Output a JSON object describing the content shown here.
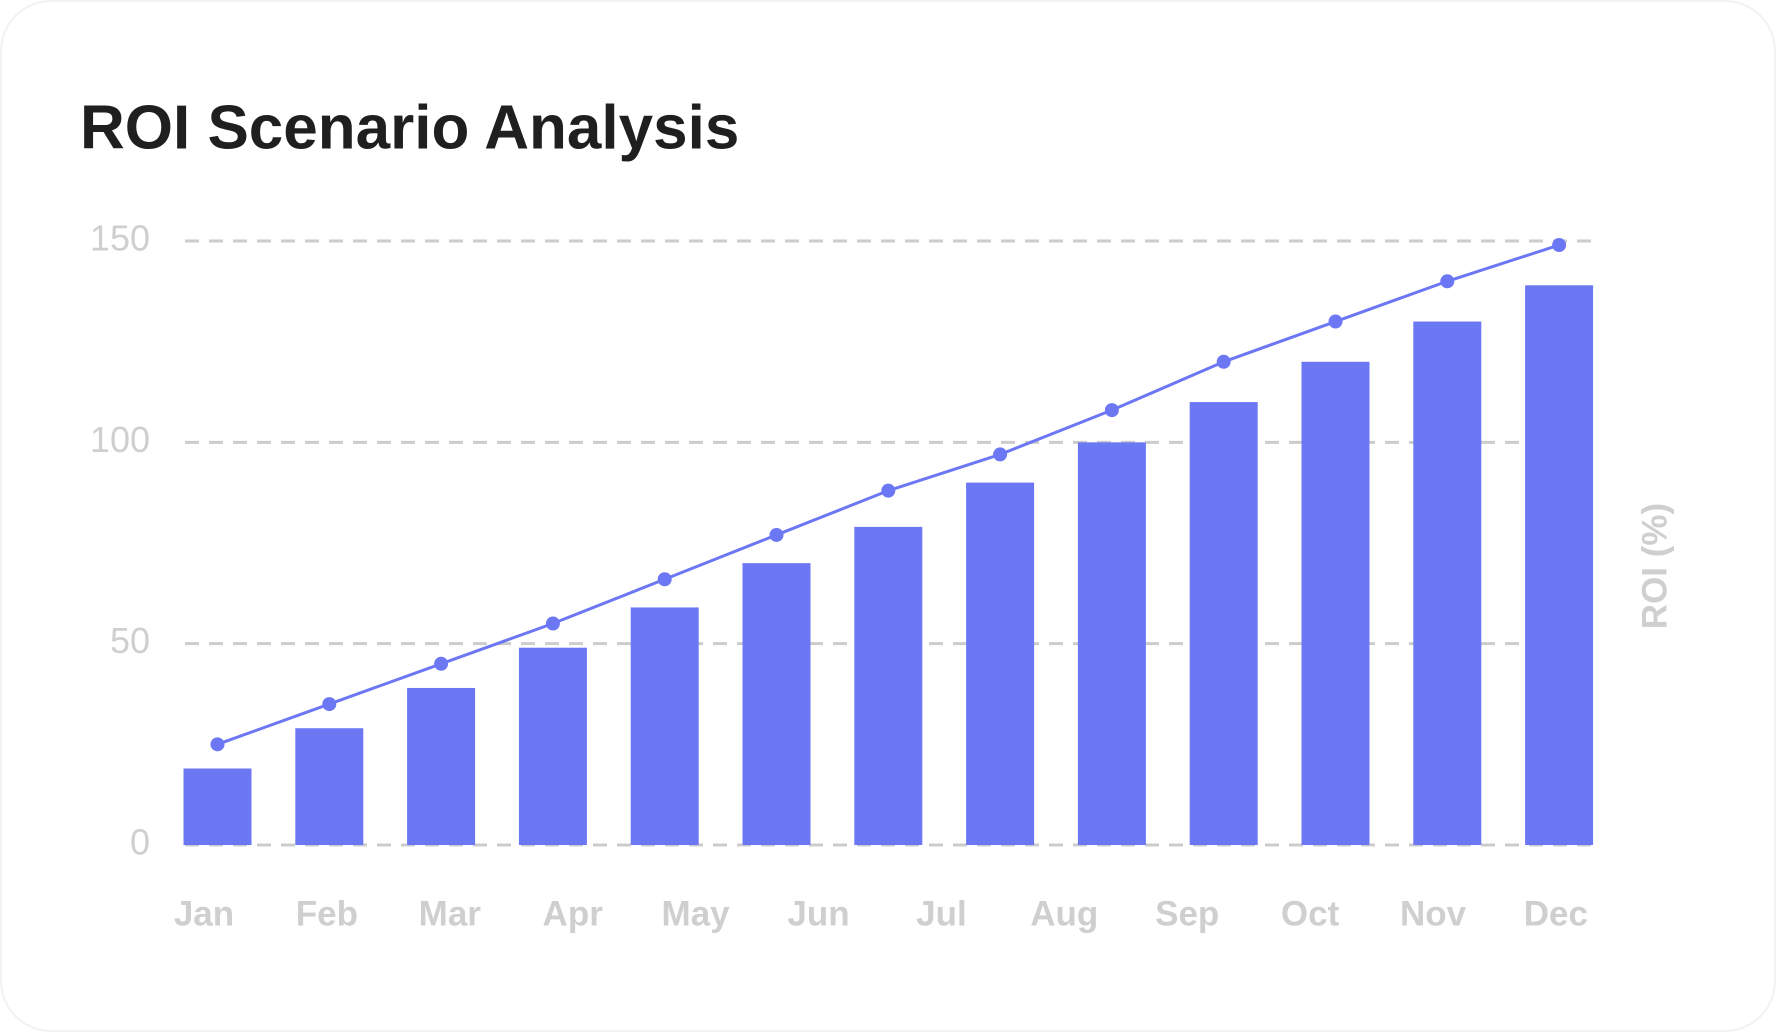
{
  "chart_data": {
    "type": "bar-line",
    "title": "ROI Scenario Analysis",
    "ylabel": "ROI (%)",
    "categories": [
      "Jan",
      "Feb",
      "Mar",
      "Apr",
      "May",
      "Jun",
      "Jul",
      "Aug",
      "Sep",
      "Oct",
      "Nov",
      "Dec",
      null
    ],
    "series": [
      {
        "type": "bar",
        "color": "#6c77f4",
        "values": [
          19,
          29,
          39,
          49,
          59,
          70,
          79,
          90,
          100,
          110,
          120,
          130,
          139
        ]
      },
      {
        "type": "line",
        "color": "#6c77f4",
        "values": [
          25,
          35,
          45,
          55,
          66,
          77,
          88,
          97,
          108,
          120,
          130,
          140,
          149
        ]
      }
    ],
    "ylim": [
      0,
      150
    ],
    "yticks": [
      0,
      50,
      100,
      150
    ],
    "grid": true
  }
}
